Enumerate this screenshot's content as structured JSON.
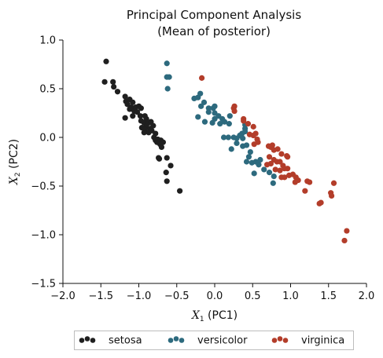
{
  "chart_data": {
    "type": "scatter",
    "title": "Principal Component Analysis",
    "subtitle": "(Mean of posterior)",
    "xlabel_math": "X",
    "xlabel_sub": "1",
    "xlabel_text": " (PC1)",
    "ylabel_math": "X",
    "ylabel_sub": "2",
    "ylabel_text": " (PC2)",
    "xlim": [
      -2.0,
      2.0
    ],
    "ylim": [
      -1.5,
      1.0
    ],
    "xticks": [
      -2.0,
      -1.5,
      -1.0,
      -0.5,
      0.0,
      0.5,
      1.0,
      1.5,
      2.0
    ],
    "yticks": [
      -1.5,
      -1.0,
      -0.5,
      0.0,
      0.5,
      1.0
    ],
    "xtick_labels": [
      "−2.0",
      "−1.5",
      "−1.0",
      "−0.5",
      "0.0",
      "0.5",
      "1.0",
      "1.5",
      "2.0"
    ],
    "ytick_labels": [
      "−1.5",
      "−1.0",
      "−0.5",
      "0.0",
      "0.5",
      "1.0"
    ],
    "grid": false,
    "legend_placement": "bottom-center, below axes",
    "series": [
      {
        "name": "setosa",
        "color": "#1f1f1f",
        "points": [
          [
            -1.43,
            0.78
          ],
          [
            -1.45,
            0.57
          ],
          [
            -1.34,
            0.57
          ],
          [
            -1.33,
            0.52
          ],
          [
            -1.28,
            0.47
          ],
          [
            -1.18,
            0.42
          ],
          [
            -1.17,
            0.37
          ],
          [
            -1.12,
            0.39
          ],
          [
            -1.15,
            0.34
          ],
          [
            -1.08,
            0.36
          ],
          [
            -1.1,
            0.31
          ],
          [
            -1.12,
            0.29
          ],
          [
            -1.04,
            0.31
          ],
          [
            -1.0,
            0.32
          ],
          [
            -0.97,
            0.3
          ],
          [
            -1.06,
            0.27
          ],
          [
            -1.02,
            0.26
          ],
          [
            -1.08,
            0.22
          ],
          [
            -1.18,
            0.2
          ],
          [
            -0.98,
            0.22
          ],
          [
            -0.92,
            0.22
          ],
          [
            -0.9,
            0.19
          ],
          [
            -0.97,
            0.17
          ],
          [
            -0.93,
            0.15
          ],
          [
            -0.87,
            0.15
          ],
          [
            -0.84,
            0.16
          ],
          [
            -0.96,
            0.1
          ],
          [
            -0.9,
            0.11
          ],
          [
            -0.85,
            0.09
          ],
          [
            -0.81,
            0.12
          ],
          [
            -0.92,
            0.08
          ],
          [
            -0.87,
            0.05
          ],
          [
            -0.93,
            0.05
          ],
          [
            -0.83,
            0.07
          ],
          [
            -0.8,
            0.0
          ],
          [
            -0.78,
            -0.03
          ],
          [
            -0.76,
            -0.05
          ],
          [
            -0.75,
            -0.02
          ],
          [
            -0.71,
            -0.03
          ],
          [
            -0.68,
            -0.05
          ],
          [
            -0.72,
            -0.07
          ],
          [
            -0.7,
            -0.1
          ],
          [
            -0.74,
            -0.21
          ],
          [
            -0.73,
            -0.22
          ],
          [
            -0.63,
            -0.21
          ],
          [
            -0.58,
            -0.29
          ],
          [
            -0.64,
            -0.36
          ],
          [
            -0.63,
            -0.45
          ],
          [
            -0.46,
            -0.55
          ],
          [
            -0.78,
            0.04
          ]
        ]
      },
      {
        "name": "versicolor",
        "color": "#2d6a7e",
        "points": [
          [
            -0.63,
            0.76
          ],
          [
            -0.63,
            0.62
          ],
          [
            -0.6,
            0.62
          ],
          [
            -0.62,
            0.5
          ],
          [
            -0.27,
            0.4
          ],
          [
            -0.22,
            0.41
          ],
          [
            -0.19,
            0.45
          ],
          [
            -0.14,
            0.36
          ],
          [
            -0.08,
            0.3
          ],
          [
            -0.02,
            0.3
          ],
          [
            0.0,
            0.32
          ],
          [
            -0.18,
            0.32
          ],
          [
            -0.08,
            0.26
          ],
          [
            0.0,
            0.25
          ],
          [
            -0.22,
            0.21
          ],
          [
            -0.13,
            0.16
          ],
          [
            -0.03,
            0.15
          ],
          [
            0.0,
            0.19
          ],
          [
            0.05,
            0.22
          ],
          [
            0.1,
            0.19
          ],
          [
            0.07,
            0.14
          ],
          [
            0.13,
            0.16
          ],
          [
            0.19,
            0.14
          ],
          [
            0.2,
            0.22
          ],
          [
            0.4,
            0.13
          ],
          [
            0.4,
            0.06
          ],
          [
            0.4,
            0.09
          ],
          [
            0.33,
            0.02
          ],
          [
            0.37,
            -0.01
          ],
          [
            0.29,
            -0.01
          ],
          [
            0.25,
            0.0
          ],
          [
            0.29,
            -0.06
          ],
          [
            0.37,
            -0.09
          ],
          [
            0.42,
            -0.08
          ],
          [
            0.22,
            -0.12
          ],
          [
            0.18,
            0.0
          ],
          [
            0.12,
            0.0
          ],
          [
            0.47,
            -0.15
          ],
          [
            0.45,
            -0.2
          ],
          [
            0.42,
            -0.25
          ],
          [
            0.49,
            -0.26
          ],
          [
            0.54,
            -0.25
          ],
          [
            0.58,
            -0.28
          ],
          [
            0.6,
            -0.23
          ],
          [
            0.65,
            -0.33
          ],
          [
            0.52,
            -0.37
          ],
          [
            0.72,
            -0.36
          ],
          [
            0.78,
            -0.4
          ],
          [
            0.77,
            -0.47
          ],
          [
            0.36,
            0.04
          ]
        ]
      },
      {
        "name": "virginica",
        "color": "#b33d2a",
        "points": [
          [
            -0.17,
            0.61
          ],
          [
            0.25,
            0.3
          ],
          [
            0.26,
            0.32
          ],
          [
            0.26,
            0.27
          ],
          [
            0.38,
            0.19
          ],
          [
            0.38,
            0.17
          ],
          [
            0.44,
            0.14
          ],
          [
            0.51,
            0.11
          ],
          [
            0.54,
            0.04
          ],
          [
            0.46,
            0.03
          ],
          [
            0.51,
            0.02
          ],
          [
            0.56,
            -0.02
          ],
          [
            0.57,
            -0.05
          ],
          [
            0.52,
            -0.07
          ],
          [
            0.71,
            -0.09
          ],
          [
            0.74,
            -0.1
          ],
          [
            0.76,
            -0.08
          ],
          [
            0.78,
            -0.13
          ],
          [
            0.83,
            -0.12
          ],
          [
            0.88,
            -0.17
          ],
          [
            0.95,
            -0.19
          ],
          [
            0.96,
            -0.2
          ],
          [
            0.72,
            -0.2
          ],
          [
            0.74,
            -0.27
          ],
          [
            0.69,
            -0.28
          ],
          [
            0.78,
            -0.23
          ],
          [
            0.82,
            -0.25
          ],
          [
            0.86,
            -0.25
          ],
          [
            0.9,
            -0.29
          ],
          [
            0.92,
            -0.32
          ],
          [
            0.96,
            -0.32
          ],
          [
            0.86,
            -0.34
          ],
          [
            0.8,
            -0.33
          ],
          [
            0.88,
            -0.41
          ],
          [
            0.92,
            -0.41
          ],
          [
            0.98,
            -0.39
          ],
          [
            1.03,
            -0.38
          ],
          [
            1.07,
            -0.41
          ],
          [
            1.06,
            -0.46
          ],
          [
            1.1,
            -0.44
          ],
          [
            1.22,
            -0.45
          ],
          [
            1.25,
            -0.46
          ],
          [
            1.19,
            -0.55
          ],
          [
            1.4,
            -0.67
          ],
          [
            1.38,
            -0.68
          ],
          [
            1.53,
            -0.57
          ],
          [
            1.54,
            -0.6
          ],
          [
            1.57,
            -0.47
          ],
          [
            1.74,
            -0.96
          ],
          [
            1.71,
            -1.06
          ]
        ]
      }
    ]
  }
}
